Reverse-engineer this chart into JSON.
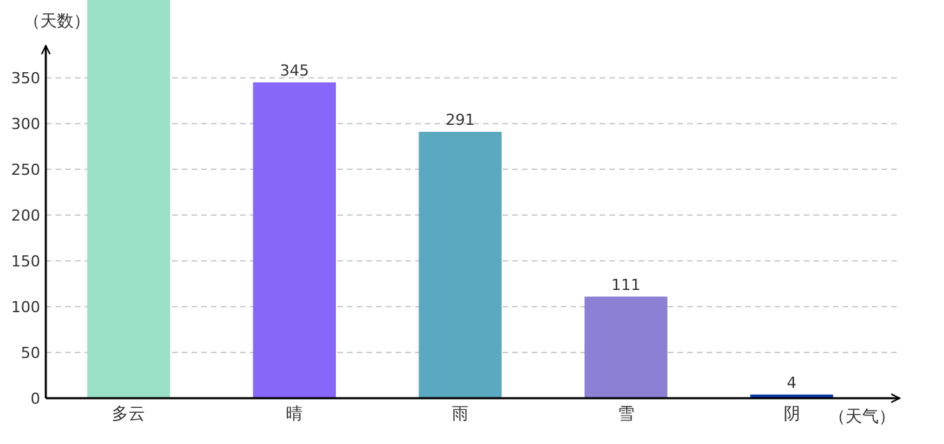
{
  "chart_data": {
    "type": "bar",
    "categories": [
      "多云",
      "晴",
      "雨",
      "雪",
      "阴"
    ],
    "values": [
      435,
      345,
      291,
      111,
      4
    ],
    "colors": [
      "#9ae0c6",
      "#8766fa",
      "#5ba9c0",
      "#8b80d4",
      "#0b3aa4"
    ],
    "value_labels": [
      null,
      "345",
      "291",
      "111",
      "4"
    ],
    "ylabel": "（天数）",
    "xlabel": "（天气）",
    "ylim": [
      0,
      435
    ],
    "yticks": [
      0,
      50,
      100,
      150,
      200,
      250,
      300,
      350
    ],
    "grid": "y"
  }
}
